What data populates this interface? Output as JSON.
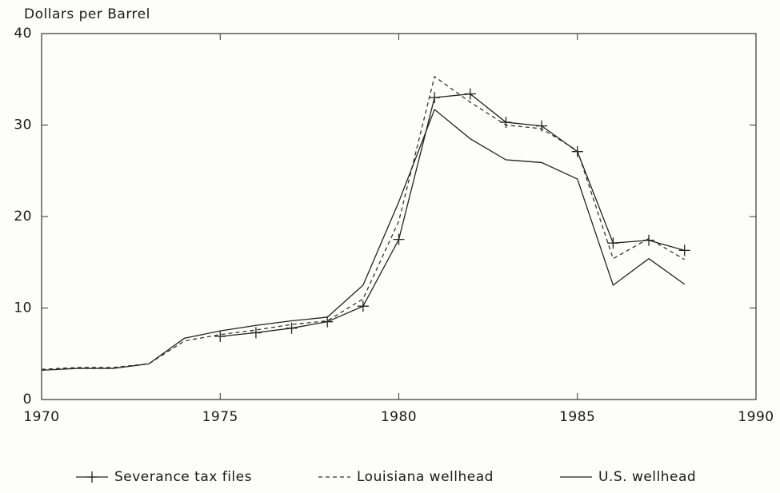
{
  "chart_data": {
    "type": "line",
    "y_label": "Dollars per Barrel",
    "xlim": [
      1970,
      1990
    ],
    "xticks": [
      1970,
      1975,
      1980,
      1985,
      1990
    ],
    "ylim": [
      0,
      40
    ],
    "yticks": [
      0,
      10,
      20,
      30,
      40
    ],
    "legend": "bottom",
    "series": [
      {
        "name": "Severance tax files",
        "color": "#222222",
        "style": "solid",
        "marker": "+",
        "x": [
          1975,
          1976,
          1977,
          1978,
          1979,
          1980,
          1981,
          1982,
          1983,
          1984,
          1985,
          1986,
          1987,
          1988
        ],
        "values": [
          6.9,
          7.3,
          7.8,
          8.5,
          10.2,
          17.5,
          33.0,
          33.4,
          30.3,
          29.9,
          27.1,
          17.1,
          17.4,
          16.3
        ]
      },
      {
        "name": "Louisiana wellhead",
        "color": "#333333",
        "style": "dashed",
        "marker": "none",
        "x": [
          1970,
          1971,
          1972,
          1973,
          1974,
          1975,
          1976,
          1977,
          1978,
          1979,
          1980,
          1981,
          1982,
          1983,
          1984,
          1985,
          1986,
          1987,
          1988
        ],
        "values": [
          3.3,
          3.5,
          3.5,
          3.9,
          6.4,
          7.1,
          7.6,
          8.2,
          8.6,
          11.0,
          19.5,
          35.3,
          32.5,
          30.0,
          29.6,
          27.2,
          15.4,
          17.6,
          15.3
        ]
      },
      {
        "name": "U.S. wellhead",
        "color": "#222222",
        "style": "solid",
        "marker": "none",
        "x": [
          1970,
          1971,
          1972,
          1973,
          1974,
          1975,
          1976,
          1977,
          1978,
          1979,
          1980,
          1981,
          1982,
          1983,
          1984,
          1985,
          1986,
          1987,
          1988
        ],
        "values": [
          3.2,
          3.4,
          3.4,
          3.9,
          6.7,
          7.5,
          8.1,
          8.6,
          9.0,
          12.5,
          21.6,
          31.7,
          28.5,
          26.2,
          25.9,
          24.1,
          12.5,
          15.4,
          12.6
        ]
      }
    ]
  }
}
